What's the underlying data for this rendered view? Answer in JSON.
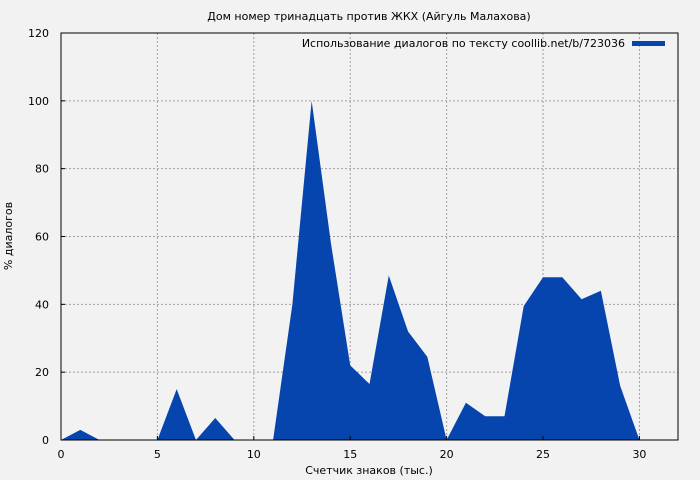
{
  "chart_data": {
    "type": "area",
    "title": "Дом номер тринадцать против ЖКХ (Айгуль Малахова)",
    "xlabel": "Счетчик знаков (тыс.)",
    "ylabel": "% диалогов",
    "xlim": [
      0,
      32
    ],
    "ylim": [
      0,
      120
    ],
    "xticks": [
      0,
      5,
      10,
      15,
      20,
      25,
      30
    ],
    "yticks": [
      0,
      20,
      40,
      60,
      80,
      100,
      120
    ],
    "grid": true,
    "legend_position": "top-right",
    "series": [
      {
        "name": "Использование диалогов по тексту coollib.net/b/723036",
        "color": "#0645ad",
        "x": [
          0,
          1,
          2,
          3,
          4,
          5,
          6,
          7,
          8,
          9,
          10,
          11,
          12,
          13,
          14,
          15,
          16,
          17,
          18,
          19,
          20,
          21,
          22,
          23,
          24,
          25,
          26,
          27,
          28,
          29,
          30
        ],
        "y": [
          0,
          3,
          0,
          0,
          0,
          0,
          15,
          0,
          6.5,
          0,
          0,
          0,
          40,
          100,
          58,
          22,
          16.5,
          48.5,
          32,
          24.5,
          0,
          11,
          7,
          7,
          39.5,
          48,
          48,
          41.5,
          44,
          16,
          0
        ]
      }
    ]
  }
}
